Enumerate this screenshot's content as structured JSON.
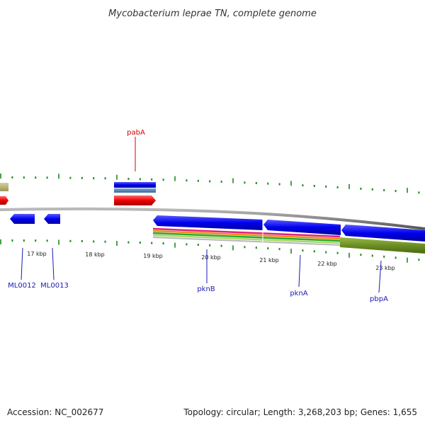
{
  "title": "Mycobacterium leprae TN, complete genome",
  "footer": {
    "accession": "Accession: NC_002677",
    "summary": "Topology: circular; Length: 3,268,203 bp; Genes: 1,655"
  },
  "axis": {
    "ticks": [
      {
        "label": "17 kbp"
      },
      {
        "label": "18 kbp"
      },
      {
        "label": "19 kbp"
      },
      {
        "label": "20 kbp"
      },
      {
        "label": "21 kbp"
      },
      {
        "label": "22 kbp"
      },
      {
        "label": "23 kbp"
      }
    ]
  },
  "genes": [
    {
      "label": "pabA",
      "color": "#d40000"
    },
    {
      "label": "ML0012",
      "color": "#1a1ab5"
    },
    {
      "label": "ML0013",
      "color": "#1a1ab5"
    },
    {
      "label": "pknB",
      "color": "#1a1ab5"
    },
    {
      "label": "pknA",
      "color": "#1a1ab5"
    },
    {
      "label": "pbpA",
      "color": "#1a1ab5"
    }
  ],
  "colors": {
    "cds": "#0000ee",
    "rna": "#ee0000",
    "backbone": "#888888",
    "olive": "#6b8e23",
    "tan": "#b5b070",
    "steel": "#4a7ab5",
    "tick": "#1a8a1a"
  }
}
